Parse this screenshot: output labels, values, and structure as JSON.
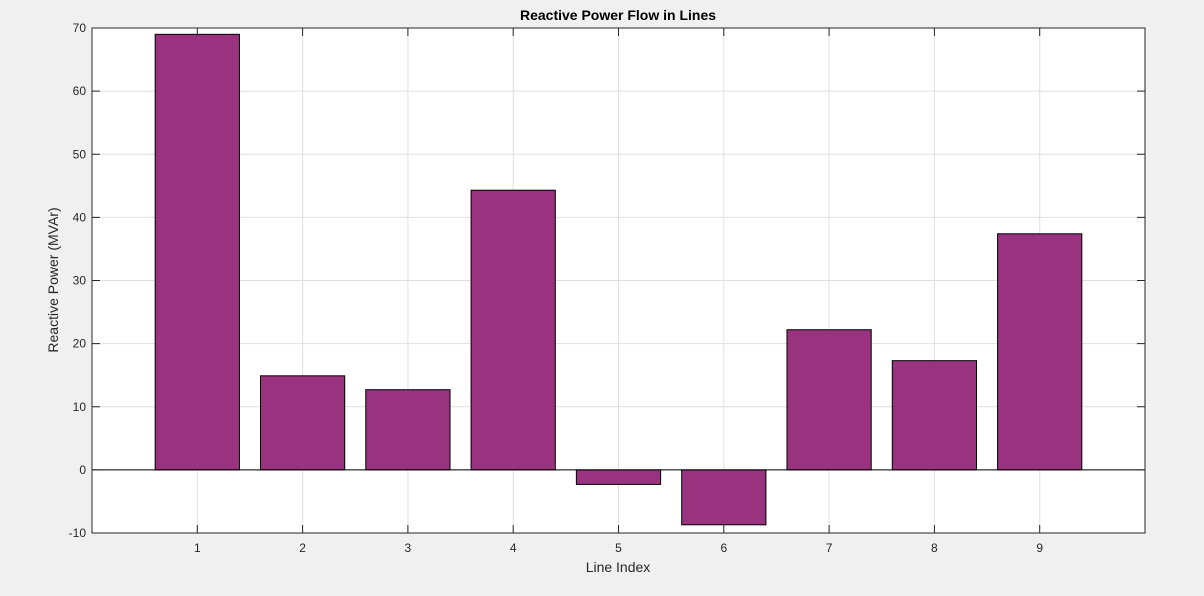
{
  "figure": {
    "background": "#f0f0f0"
  },
  "chart_data": {
    "type": "bar",
    "title": "Reactive Power Flow in Lines",
    "xlabel": "Line Index",
    "ylabel": "Reactive Power (MVAr)",
    "categories": [
      "1",
      "2",
      "3",
      "4",
      "5",
      "6",
      "7",
      "8",
      "9"
    ],
    "values": [
      69.0,
      14.9,
      12.7,
      44.3,
      -2.3,
      -8.7,
      22.2,
      17.3,
      37.4
    ],
    "xlim": [
      0.0,
      10.0
    ],
    "ylim": [
      -10,
      70
    ],
    "yticks": [
      "-10",
      "0",
      "10",
      "20",
      "30",
      "40",
      "50",
      "60",
      "70"
    ],
    "grid": true,
    "legend": "none",
    "bar_color": "#993380",
    "edge_color": "#000000"
  }
}
